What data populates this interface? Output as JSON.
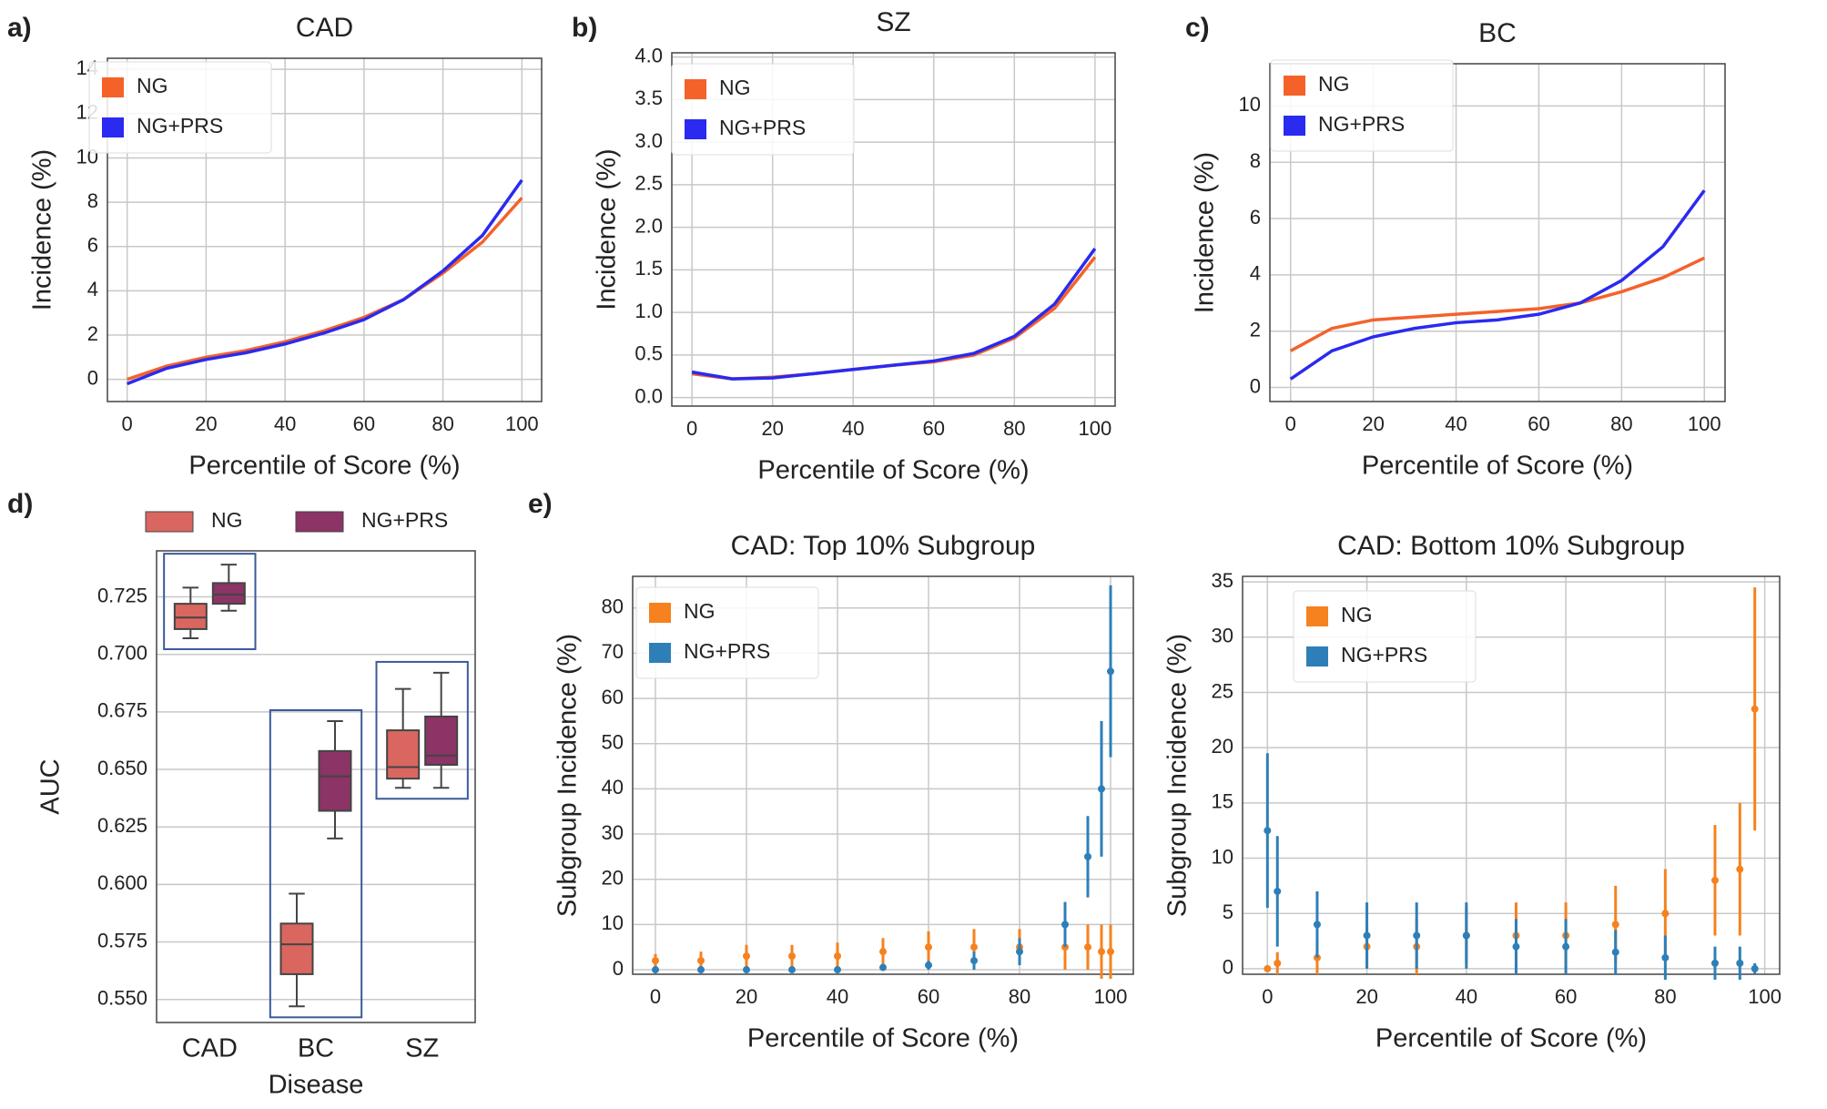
{
  "chart_data": [
    {
      "type": "line",
      "panel": "a)",
      "title": "CAD",
      "xlabel": "Percentile of Score (%)",
      "ylabel": "Incidence (%)",
      "x": [
        0,
        10,
        20,
        30,
        40,
        50,
        60,
        70,
        80,
        90,
        100
      ],
      "series": [
        {
          "name": "NG",
          "color": "#f4622a",
          "values": [
            0,
            0.6,
            1,
            1.3,
            1.7,
            2.2,
            2.8,
            3.6,
            4.8,
            6.2,
            8.2
          ]
        },
        {
          "name": "NG+PRS",
          "color": "#2a2af0",
          "values": [
            -0.2,
            0.5,
            0.9,
            1.2,
            1.6,
            2.1,
            2.7,
            3.6,
            4.9,
            6.5,
            9.0
          ]
        }
      ],
      "xlim": [
        -5,
        105
      ],
      "xticks": [
        0,
        20,
        40,
        60,
        80,
        100
      ],
      "ylim": [
        -1,
        14.5
      ],
      "yticks": [
        0,
        2,
        4,
        6,
        8,
        10,
        12,
        14
      ],
      "grid": true
    },
    {
      "type": "line",
      "panel": "b)",
      "title": "SZ",
      "xlabel": "Percentile of Score (%)",
      "ylabel": "Incidence (%)",
      "x": [
        0,
        10,
        20,
        30,
        40,
        50,
        60,
        70,
        80,
        90,
        100
      ],
      "series": [
        {
          "name": "NG",
          "color": "#f4622a",
          "values": [
            0.28,
            0.22,
            0.24,
            0.28,
            0.33,
            0.38,
            0.42,
            0.5,
            0.7,
            1.05,
            1.65
          ]
        },
        {
          "name": "NG+PRS",
          "color": "#2a2af0",
          "values": [
            0.3,
            0.22,
            0.23,
            0.28,
            0.33,
            0.38,
            0.43,
            0.52,
            0.72,
            1.1,
            1.75
          ]
        }
      ],
      "xlim": [
        -5,
        105
      ],
      "xticks": [
        0,
        20,
        40,
        60,
        80,
        100
      ],
      "ylim": [
        -0.1,
        4.05
      ],
      "yticks": [
        {
          "value": 0,
          "label": "0.0"
        },
        0.5,
        {
          "value": 1,
          "label": "1.0"
        },
        1.5,
        {
          "value": 2,
          "label": "2.0"
        },
        2.5,
        {
          "value": 3,
          "label": "3.0"
        },
        3.5,
        {
          "value": 4,
          "label": "4.0"
        }
      ],
      "grid": true
    },
    {
      "type": "line",
      "panel": "c)",
      "title": "BC",
      "xlabel": "Percentile of Score (%)",
      "ylabel": "Incidence (%)",
      "x": [
        0,
        10,
        20,
        30,
        40,
        50,
        60,
        70,
        80,
        90,
        100
      ],
      "series": [
        {
          "name": "NG",
          "color": "#f4622a",
          "values": [
            1.3,
            2.1,
            2.4,
            2.5,
            2.6,
            2.7,
            2.8,
            3.0,
            3.4,
            3.9,
            4.6
          ]
        },
        {
          "name": "NG+PRS",
          "color": "#2a2af0",
          "values": [
            0.3,
            1.3,
            1.8,
            2.1,
            2.3,
            2.4,
            2.6,
            3.0,
            3.8,
            5.0,
            7.0
          ]
        }
      ],
      "xlim": [
        -5,
        105
      ],
      "xticks": [
        0,
        20,
        40,
        60,
        80,
        100
      ],
      "ylim": [
        -0.5,
        11.5
      ],
      "yticks": [
        0,
        2,
        4,
        6,
        8,
        10
      ],
      "grid": true
    },
    {
      "type": "box",
      "panel": "d)",
      "xlabel": "Disease",
      "ylabel": "AUC",
      "categories": [
        "CAD",
        "BC",
        "SZ"
      ],
      "series": [
        {
          "name": "NG",
          "color": "#d9675f",
          "values": [
            {
              "min": 0.707,
              "q1": 0.711,
              "median": 0.716,
              "q3": 0.722,
              "max": 0.729
            },
            {
              "min": 0.547,
              "q1": 0.561,
              "median": 0.574,
              "q3": 0.583,
              "max": 0.596
            },
            {
              "min": 0.642,
              "q1": 0.646,
              "median": 0.651,
              "q3": 0.667,
              "max": 0.685
            }
          ]
        },
        {
          "name": "NG+PRS",
          "color": "#8b3465",
          "values": [
            {
              "min": 0.719,
              "q1": 0.722,
              "median": 0.726,
              "q3": 0.731,
              "max": 0.739
            },
            {
              "min": 0.62,
              "q1": 0.632,
              "median": 0.647,
              "q3": 0.658,
              "max": 0.671
            },
            {
              "min": 0.642,
              "q1": 0.652,
              "median": 0.656,
              "q3": 0.673,
              "max": 0.692
            }
          ]
        }
      ],
      "ylim": [
        0.54,
        0.745
      ],
      "yticks": [
        {
          "value": 0.55,
          "label": "0.550"
        },
        0.575,
        {
          "value": 0.6,
          "label": "0.600"
        },
        0.625,
        {
          "value": 0.65,
          "label": "0.650"
        },
        0.675,
        {
          "value": 0.7,
          "label": "0.700"
        },
        0.725
      ],
      "grid": true
    },
    {
      "type": "errorbar",
      "panel": "e)",
      "title": "CAD: Top 10% Subgroup",
      "xlabel": "Percentile of Score (%)",
      "ylabel": "Subgroup Incidence (%)",
      "x": [
        0,
        10,
        20,
        30,
        40,
        50,
        60,
        70,
        80,
        90,
        95,
        98,
        100
      ],
      "series": [
        {
          "name": "NG",
          "color": "#f5821f",
          "values": [
            2,
            2,
            3,
            3,
            3,
            4,
            5,
            5,
            5,
            5,
            5,
            4,
            4
          ],
          "errors": [
            1.5,
            2,
            2.5,
            2.5,
            3,
            3,
            3.5,
            4,
            4,
            5,
            5,
            6,
            6
          ]
        },
        {
          "name": "NG+PRS",
          "color": "#2e7fb8",
          "values": [
            0,
            0,
            0,
            0,
            0,
            0.5,
            1,
            2,
            4,
            10,
            25,
            40,
            66
          ],
          "errors": [
            0,
            0,
            0,
            0,
            0,
            0.5,
            1,
            2,
            3,
            5,
            9,
            15,
            19
          ]
        }
      ],
      "xlim": [
        -5,
        105
      ],
      "xticks": [
        0,
        20,
        40,
        60,
        80,
        100
      ],
      "ylim": [
        -1,
        87
      ],
      "yticks": [
        0,
        10,
        20,
        30,
        40,
        50,
        60,
        70,
        80
      ],
      "grid": true
    },
    {
      "type": "errorbar",
      "title": "CAD: Bottom 10% Subgroup",
      "xlabel": "Percentile of Score (%)",
      "ylabel": "Subgroup Incidence (%)",
      "x": [
        0,
        2,
        10,
        20,
        30,
        40,
        50,
        60,
        70,
        80,
        90,
        95,
        98
      ],
      "series": [
        {
          "name": "NG",
          "color": "#f5821f",
          "values": [
            0,
            0.5,
            1,
            2,
            2,
            3,
            3,
            3,
            4,
            5,
            8,
            9,
            23.5
          ],
          "errors": [
            0,
            1,
            1.5,
            2,
            2.5,
            2.5,
            3,
            3,
            3.5,
            4,
            5,
            6,
            11
          ]
        },
        {
          "name": "NG+PRS",
          "color": "#2e7fb8",
          "values": [
            12.5,
            7,
            4,
            3,
            3,
            3,
            2,
            2,
            1.5,
            1,
            0.5,
            0.5,
            0
          ],
          "errors": [
            7,
            5,
            3,
            3,
            3,
            3,
            2.5,
            2.5,
            2,
            2,
            1.5,
            1.5,
            0.5
          ]
        }
      ],
      "xlim": [
        -5,
        103
      ],
      "xticks": [
        0,
        20,
        40,
        60,
        80,
        100
      ],
      "ylim": [
        -0.5,
        35.5
      ],
      "yticks": [
        0,
        5,
        10,
        15,
        20,
        25,
        30,
        35
      ],
      "grid": true
    }
  ]
}
